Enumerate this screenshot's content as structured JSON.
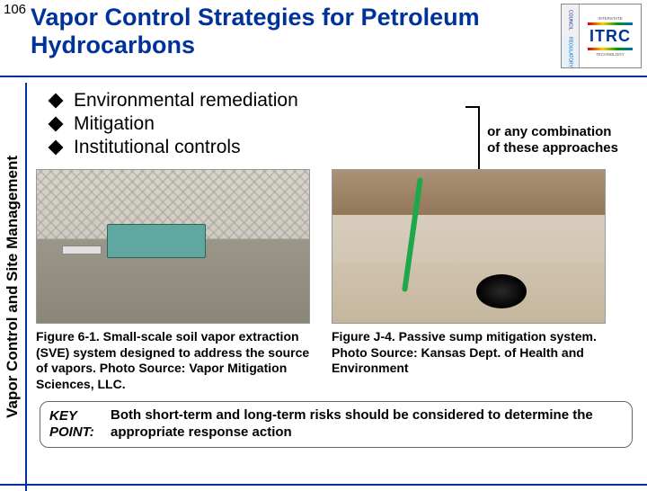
{
  "slide_number": "106",
  "title": "Vapor Control Strategies for Petroleum Hydrocarbons",
  "logo": {
    "left_top": "COUNCIL",
    "left_bottom": "REGULATORY",
    "right_top": "INTERSTATE",
    "right_bottom": "TECHNOLOGY",
    "main": "ITRC"
  },
  "sidebar_label": "Vapor Control and Site Management",
  "bullets": [
    "Environmental remediation",
    "Mitigation",
    "Institutional controls"
  ],
  "bracket_note_line1": "or any combination",
  "bracket_note_line2": "of these approaches",
  "figure1_caption": "Figure 6-1. Small-scale soil vapor extraction (SVE) system designed to address the source of vapors. Photo Source: Vapor Mitigation Sciences, LLC.",
  "figure2_caption": "Figure J‑4. Passive sump mitigation system. Photo Source: Kansas Dept. of Health and Environment",
  "keypoint_label_line1": "KEY",
  "keypoint_label_line2": "POINT:",
  "keypoint_text": "Both short-term and long-term risks should be considered to determine the appropriate response action",
  "colors": {
    "accent": "#003399",
    "text": "#000000",
    "background": "#ffffff"
  }
}
